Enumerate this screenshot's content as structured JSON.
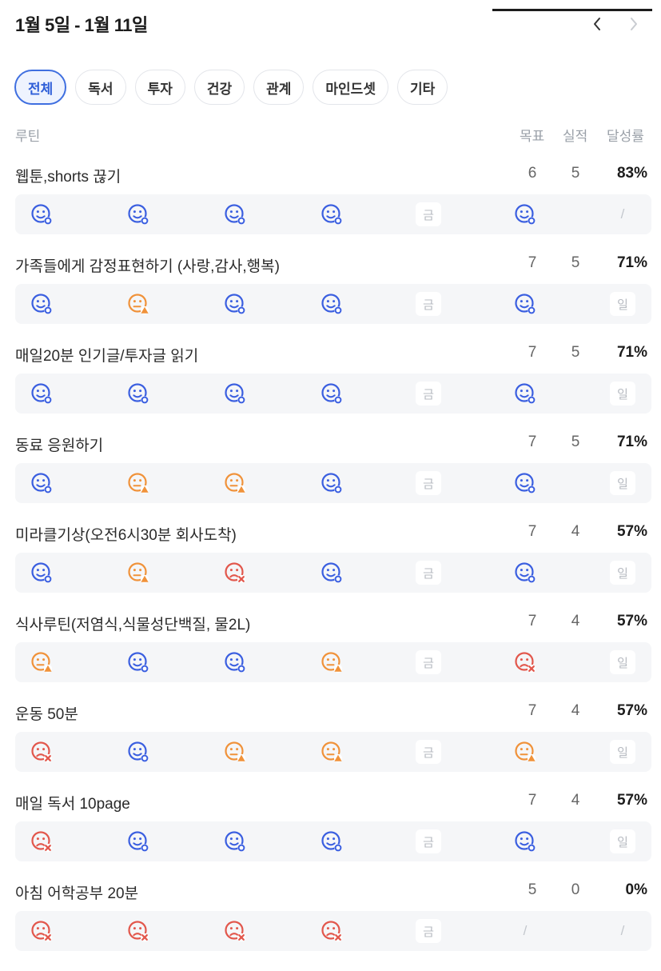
{
  "header": {
    "date_range": "1월 5일 - 1월 11일",
    "prev_icon": "chevron-left-icon",
    "next_icon": "chevron-right-icon"
  },
  "tabs": [
    {
      "label": "전체",
      "active": true
    },
    {
      "label": "독서",
      "active": false
    },
    {
      "label": "투자",
      "active": false
    },
    {
      "label": "건강",
      "active": false
    },
    {
      "label": "관계",
      "active": false
    },
    {
      "label": "마인드셋",
      "active": false
    },
    {
      "label": "기타",
      "active": false
    }
  ],
  "columns": {
    "routine": "루틴",
    "goal": "목표",
    "actual": "실적",
    "rate": "달성률"
  },
  "status_colors": {
    "done": "#3b5fe0",
    "partial": "#f0923a",
    "fail": "#e2574c"
  },
  "routines": [
    {
      "name": "웹툰,shorts 끊기",
      "goal": "6",
      "actual": "5",
      "rate": "83%",
      "days": [
        {
          "type": "done"
        },
        {
          "type": "done"
        },
        {
          "type": "done"
        },
        {
          "type": "done"
        },
        {
          "type": "chip",
          "label": "금"
        },
        {
          "type": "done"
        },
        {
          "type": "slash",
          "label": "/"
        }
      ]
    },
    {
      "name": "가족들에게 감정표현하기 (사랑,감사,행복)",
      "goal": "7",
      "actual": "5",
      "rate": "71%",
      "days": [
        {
          "type": "done"
        },
        {
          "type": "partial"
        },
        {
          "type": "done"
        },
        {
          "type": "done"
        },
        {
          "type": "chip",
          "label": "금"
        },
        {
          "type": "done"
        },
        {
          "type": "chip",
          "label": "일"
        }
      ]
    },
    {
      "name": "매일20분 인기글/투자글 읽기",
      "goal": "7",
      "actual": "5",
      "rate": "71%",
      "days": [
        {
          "type": "done"
        },
        {
          "type": "done"
        },
        {
          "type": "done"
        },
        {
          "type": "done"
        },
        {
          "type": "chip",
          "label": "금"
        },
        {
          "type": "done"
        },
        {
          "type": "chip",
          "label": "일"
        }
      ]
    },
    {
      "name": "동료 응원하기",
      "goal": "7",
      "actual": "5",
      "rate": "71%",
      "days": [
        {
          "type": "done"
        },
        {
          "type": "partial"
        },
        {
          "type": "partial"
        },
        {
          "type": "done"
        },
        {
          "type": "chip",
          "label": "금"
        },
        {
          "type": "done"
        },
        {
          "type": "chip",
          "label": "일"
        }
      ]
    },
    {
      "name": "미라클기상(오전6시30분 회사도착)",
      "goal": "7",
      "actual": "4",
      "rate": "57%",
      "days": [
        {
          "type": "done"
        },
        {
          "type": "partial"
        },
        {
          "type": "fail"
        },
        {
          "type": "done"
        },
        {
          "type": "chip",
          "label": "금"
        },
        {
          "type": "done"
        },
        {
          "type": "chip",
          "label": "일"
        }
      ]
    },
    {
      "name": "식사루틴(저염식,식물성단백질, 물2L)",
      "goal": "7",
      "actual": "4",
      "rate": "57%",
      "days": [
        {
          "type": "partial"
        },
        {
          "type": "done"
        },
        {
          "type": "done"
        },
        {
          "type": "partial"
        },
        {
          "type": "chip",
          "label": "금"
        },
        {
          "type": "fail"
        },
        {
          "type": "chip",
          "label": "일"
        }
      ]
    },
    {
      "name": "운동 50분",
      "goal": "7",
      "actual": "4",
      "rate": "57%",
      "days": [
        {
          "type": "fail"
        },
        {
          "type": "done"
        },
        {
          "type": "partial"
        },
        {
          "type": "partial"
        },
        {
          "type": "chip",
          "label": "금"
        },
        {
          "type": "partial"
        },
        {
          "type": "chip",
          "label": "일"
        }
      ]
    },
    {
      "name": "매일 독서 10page",
      "goal": "7",
      "actual": "4",
      "rate": "57%",
      "days": [
        {
          "type": "fail"
        },
        {
          "type": "done"
        },
        {
          "type": "done"
        },
        {
          "type": "done"
        },
        {
          "type": "chip",
          "label": "금"
        },
        {
          "type": "done"
        },
        {
          "type": "chip",
          "label": "일"
        }
      ]
    },
    {
      "name": "아침 어학공부 20분",
      "goal": "5",
      "actual": "0",
      "rate": "0%",
      "days": [
        {
          "type": "fail"
        },
        {
          "type": "fail"
        },
        {
          "type": "fail"
        },
        {
          "type": "fail"
        },
        {
          "type": "chip",
          "label": "금"
        },
        {
          "type": "slash",
          "label": "/"
        },
        {
          "type": "slash",
          "label": "/"
        }
      ]
    }
  ]
}
